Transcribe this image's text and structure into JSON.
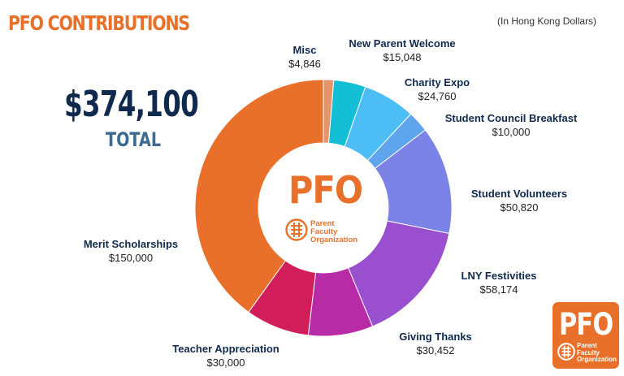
{
  "header": {
    "title": "PFO CONTRIBUTIONS",
    "currency_note": "(In Hong Kong Dollars)"
  },
  "total": {
    "amount": "$374,100",
    "label": "TOTAL"
  },
  "logo": {
    "acronym": "PFO",
    "org_line1": "Parent",
    "org_line2": "Faculty",
    "org_line3": "Organization"
  },
  "colors": {
    "brand_orange": "#e8702a",
    "navy": "#0f2a4d"
  },
  "chart_data": {
    "type": "pie",
    "variant": "donut",
    "title": "PFO CONTRIBUTIONS",
    "unit": "HKD",
    "total": 374100,
    "slices": [
      {
        "name": "Misc",
        "value": 4846,
        "display": "$4,846",
        "color": "#e5956a"
      },
      {
        "name": "New Parent Welcome",
        "value": 15048,
        "display": "$15,048",
        "color": "#14bfd6"
      },
      {
        "name": "Charity Expo",
        "value": 24760,
        "display": "$24,760",
        "color": "#4dbdf5"
      },
      {
        "name": "Student Council Breakfast",
        "value": 10000,
        "display": "$10,000",
        "color": "#5ea5ee"
      },
      {
        "name": "Student Volunteers",
        "value": 50820,
        "display": "$50,820",
        "color": "#7b83e6"
      },
      {
        "name": "LNY Festivities",
        "value": 58174,
        "display": "$58,174",
        "color": "#9a4fcf"
      },
      {
        "name": "Giving Thanks",
        "value": 30452,
        "display": "$30,452",
        "color": "#b82ba6"
      },
      {
        "name": "Teacher Appreciation",
        "value": 30000,
        "display": "$30,000",
        "color": "#d11e5b"
      },
      {
        "name": "Merit Scholarships",
        "value": 150000,
        "display": "$150,000",
        "color": "#e8702a"
      }
    ]
  }
}
